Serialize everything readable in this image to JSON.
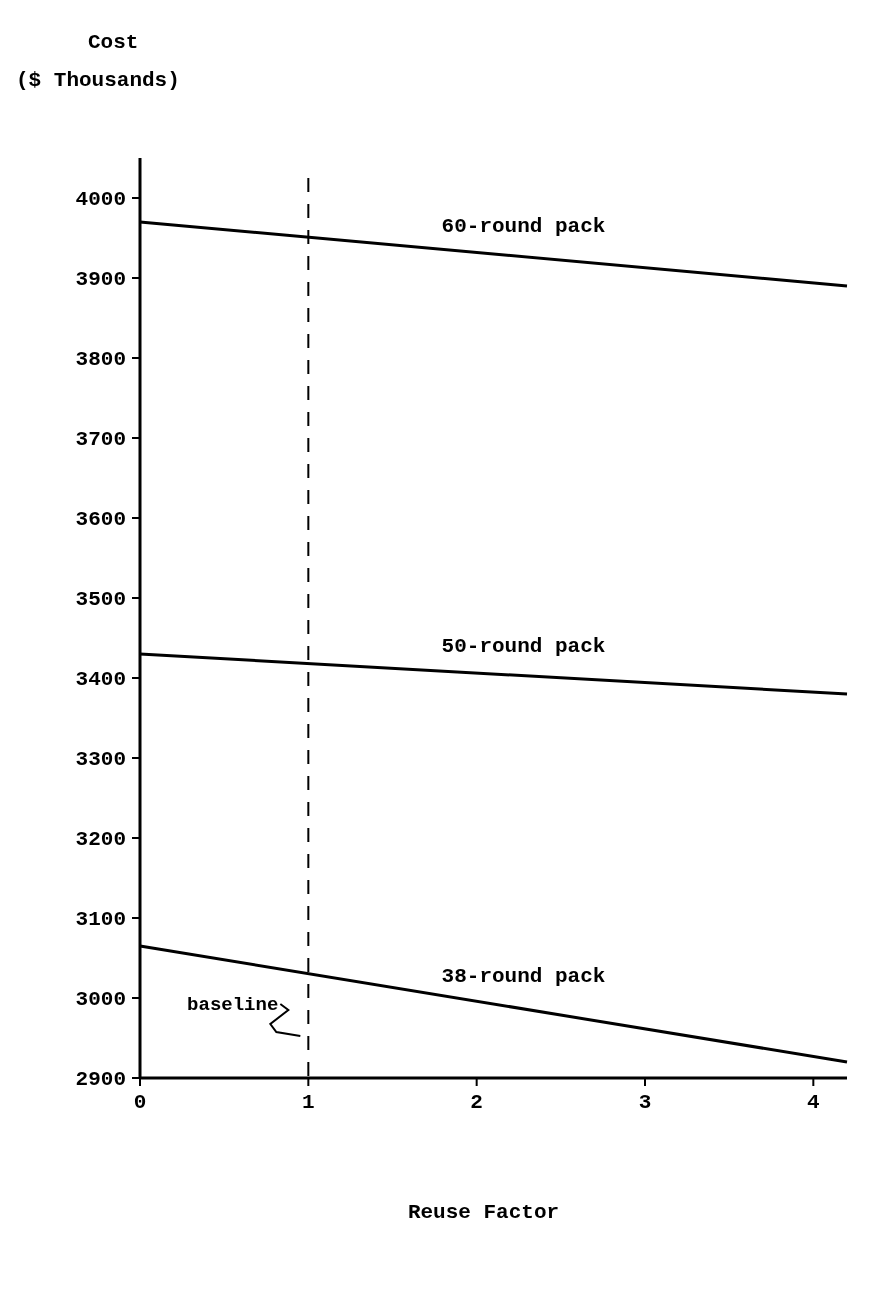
{
  "chart_data": {
    "type": "line",
    "ylabel": "Cost\n($ Thousands)",
    "xlabel": "Reuse Factor",
    "x": [
      0,
      4.2
    ],
    "series": [
      {
        "name": "60-round pack",
        "color": "#000000",
        "values": [
          3970,
          3890
        ]
      },
      {
        "name": "50-round pack",
        "color": "#000000",
        "values": [
          3430,
          3380
        ]
      },
      {
        "name": "38-round pack",
        "color": "#000000",
        "values": [
          3065,
          2920
        ]
      }
    ],
    "xlim": [
      0,
      4.2
    ],
    "xticks": [
      0,
      1,
      2,
      3,
      4
    ],
    "ylim": [
      2900,
      4050
    ],
    "yticks": [
      2900,
      3000,
      3100,
      3200,
      3300,
      3400,
      3500,
      3600,
      3700,
      3800,
      3900,
      4000
    ],
    "ref_lines": [
      {
        "axis": "x",
        "value": 1,
        "label": "baseline",
        "color": "#000000",
        "line_style": "dashed"
      }
    ],
    "grid": false,
    "marker": "none",
    "line_style": "solid"
  }
}
